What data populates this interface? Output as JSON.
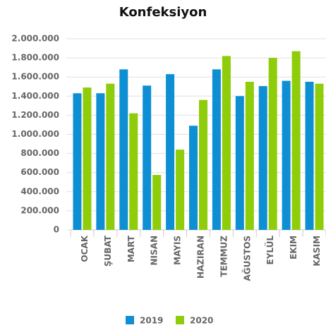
{
  "chart_data": {
    "type": "bar",
    "title": "Konfeksiyon",
    "categories": [
      "OCAK",
      "ŞUBAT",
      "MART",
      "NISAN",
      "MAYIS",
      "HAZIRAN",
      "TEMMUZ",
      "AĞUSTOS",
      "EYLÜL",
      "EKIM",
      "KASIM"
    ],
    "series": [
      {
        "name": "2019",
        "color": "#0e8fd3",
        "values": [
          1430000,
          1430000,
          1680000,
          1510000,
          1630000,
          1090000,
          1680000,
          1400000,
          1505000,
          1560000,
          1550000
        ]
      },
      {
        "name": "2020",
        "color": "#8fcc0a",
        "values": [
          1490000,
          1530000,
          1220000,
          575000,
          840000,
          1360000,
          1820000,
          1550000,
          1800000,
          1870000,
          1530000
        ]
      }
    ],
    "ylim": [
      0,
      2000000
    ],
    "yticks": [
      0,
      {
        "value": 200000,
        "label": "200.000"
      },
      {
        "value": 400000,
        "label": "400.000"
      },
      {
        "value": 600000,
        "label": "600.000"
      },
      {
        "value": 800000,
        "label": "800.000"
      },
      {
        "value": 1000000,
        "label": "1.000.000"
      },
      {
        "value": 1200000,
        "label": "1.200.000"
      },
      {
        "value": 1400000,
        "label": "1.400.000"
      },
      {
        "value": 1600000,
        "label": "1.600.000"
      },
      {
        "value": 1800000,
        "label": "1.800.000"
      },
      {
        "value": 2000000,
        "label": "2.000.000"
      }
    ],
    "grid": true,
    "legend": "bottom"
  }
}
